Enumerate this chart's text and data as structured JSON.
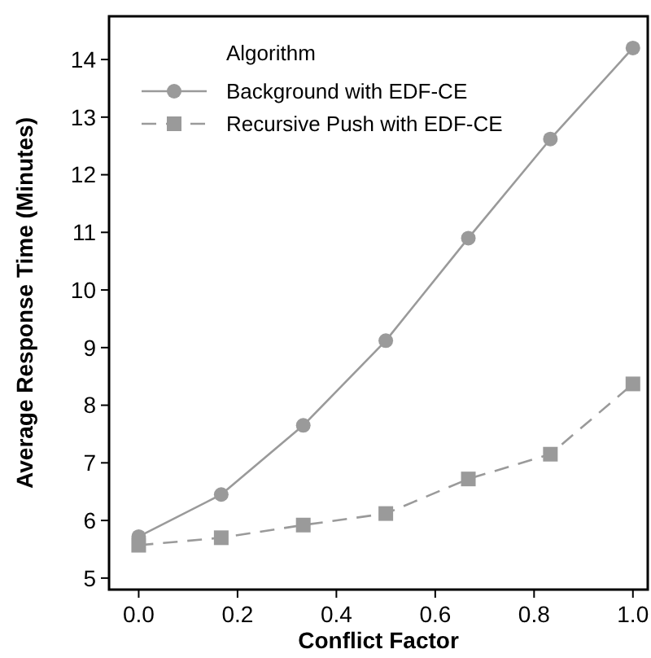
{
  "chart_data": {
    "type": "line",
    "xlabel": "Conflict Factor",
    "ylabel": "Average Response Time (Minutes)",
    "legend_title": "Algorithm",
    "legend": "top left",
    "x": [
      0,
      0.167,
      0.333,
      0.5,
      0.667,
      0.833,
      1
    ],
    "series": [
      {
        "name": "Background with EDF-CE",
        "color": "#9a9a9a",
        "marker": "circle",
        "line_style": "solid",
        "values": [
          5.72,
          6.45,
          7.65,
          9.12,
          10.9,
          12.62,
          14.2
        ]
      },
      {
        "name": "Recursive Push with EDF-CE",
        "color": "#9a9a9a",
        "marker": "square",
        "line_style": "dashed",
        "values": [
          5.57,
          5.7,
          5.92,
          6.12,
          6.72,
          7.15,
          8.37
        ]
      }
    ],
    "xlim": [
      -0.06,
      1.03
    ],
    "ylim": [
      4.8,
      14.75
    ],
    "xticks": [
      {
        "value": 0,
        "label": "0.0"
      },
      0.2,
      0.4,
      0.6,
      0.8,
      {
        "value": 1,
        "label": "1.0"
      }
    ],
    "yticks": [
      5,
      6,
      7,
      8,
      9,
      10,
      11,
      12,
      13,
      14
    ],
    "grid": false
  }
}
